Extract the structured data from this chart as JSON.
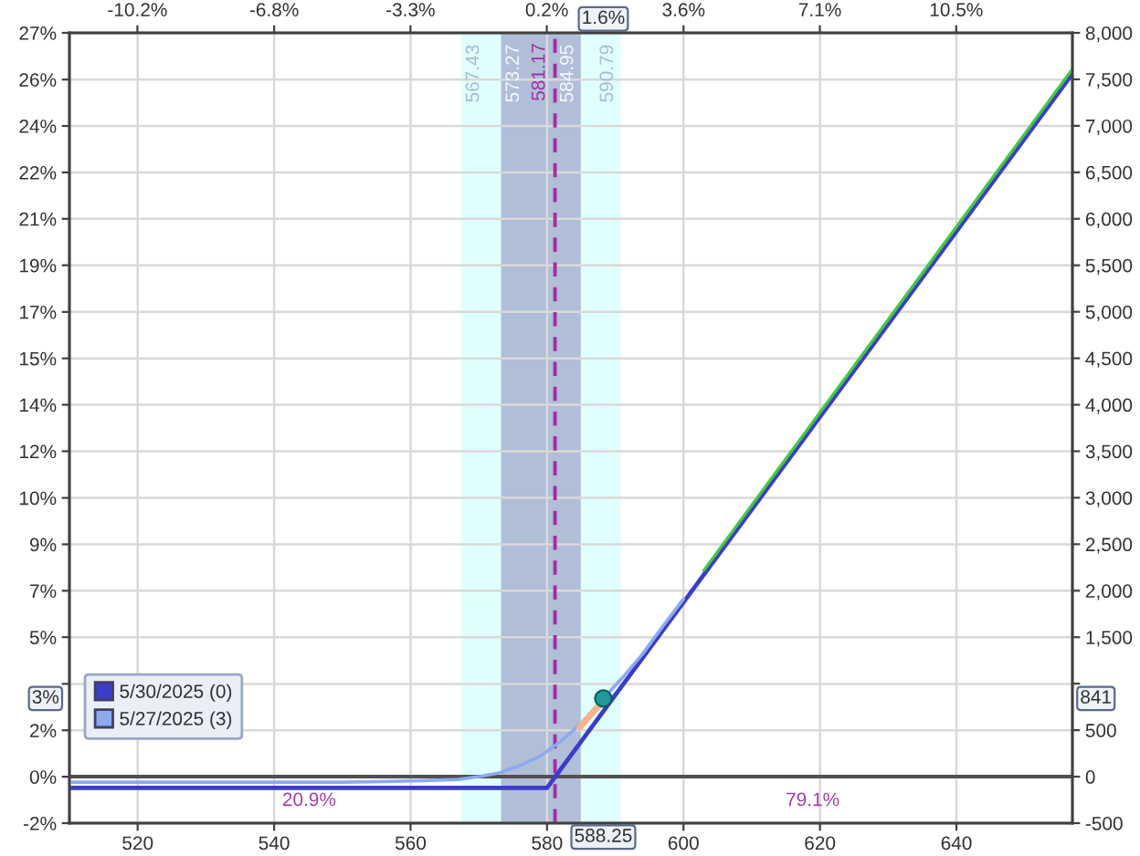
{
  "chart_data": {
    "type": "line",
    "xlim": [
      510,
      657
    ],
    "xticks": [
      520,
      540,
      560,
      580,
      600,
      620,
      640
    ],
    "x2lim": [
      -11.93,
      13.45
    ],
    "x2ticks": [
      {
        "value": -10.21,
        "label": "-10.2%"
      },
      {
        "value": -6.75,
        "label": "-6.8%"
      },
      {
        "value": -3.3,
        "label": "-3.3%"
      },
      {
        "value": 0.15,
        "label": "0.2%"
      },
      {
        "value": 3.61,
        "label": "3.6%"
      },
      {
        "value": 7.06,
        "label": "7.1%"
      },
      {
        "value": 10.51,
        "label": "10.5%"
      }
    ],
    "ylim": [
      -1.71,
      27.4
    ],
    "yticks": [
      {
        "value": -1.71,
        "label": "-2%"
      },
      {
        "value": 0,
        "label": "0%"
      },
      {
        "value": 1.71,
        "label": "2%"
      },
      {
        "value": 3.42,
        "label": null
      },
      {
        "value": 5.14,
        "label": "5%"
      },
      {
        "value": 6.85,
        "label": "7%"
      },
      {
        "value": 8.56,
        "label": "9%"
      },
      {
        "value": 10.27,
        "label": "10%"
      },
      {
        "value": 11.99,
        "label": "12%"
      },
      {
        "value": 13.7,
        "label": "14%"
      },
      {
        "value": 15.41,
        "label": "15%"
      },
      {
        "value": 17.12,
        "label": "17%"
      },
      {
        "value": 18.84,
        "label": "19%"
      },
      {
        "value": 20.55,
        "label": "21%"
      },
      {
        "value": 22.26,
        "label": "22%"
      },
      {
        "value": 23.97,
        "label": "24%"
      },
      {
        "value": 25.68,
        "label": "26%"
      },
      {
        "value": 27.4,
        "label": "27%"
      }
    ],
    "y2lim": [
      -500,
      8000
    ],
    "y2ticks": [
      -500,
      0,
      500,
      {
        "value": 1000,
        "label": null
      },
      {
        "value": 1500,
        "label": "1,500"
      },
      {
        "value": 2000,
        "label": "2,000"
      },
      {
        "value": 2500,
        "label": "2,500"
      },
      {
        "value": 3000,
        "label": "3,000"
      },
      {
        "value": 3500,
        "label": "3,500"
      },
      {
        "value": 4000,
        "label": "4,000"
      },
      {
        "value": 4500,
        "label": "4,500"
      },
      {
        "value": 5000,
        "label": "5,000"
      },
      {
        "value": 5500,
        "label": "5,500"
      },
      {
        "value": 6000,
        "label": "6,000"
      },
      {
        "value": 6500,
        "label": "6,500"
      },
      {
        "value": 7000,
        "label": "7,000"
      },
      {
        "value": 7500,
        "label": "7,500"
      },
      {
        "value": 8000,
        "label": "8,000"
      }
    ],
    "grid": true,
    "legend": "bottom left",
    "bands": [
      {
        "axis": "x",
        "from": 567.43,
        "to": 590.79,
        "color": "#e0ffff"
      },
      {
        "axis": "x",
        "from": 573.27,
        "to": 584.95,
        "color": "#b0bed8"
      }
    ],
    "ref_lines": [
      {
        "axis": "x",
        "value": 581.17,
        "label": "581.17",
        "color": "#a030a0",
        "line_style": "dashed"
      },
      {
        "axis": "y2",
        "value": 0,
        "color": "#505050"
      }
    ],
    "series": [
      {
        "name": "5/30/2025 (0)",
        "color": "#3c3cc8",
        "axis": "y2",
        "x": [
          510,
          580,
          657
        ],
        "values": [
          -120,
          -120,
          7560
        ]
      },
      {
        "name": "5/27/2025 (3)",
        "color": "#8caaf0",
        "axis": "y2",
        "x": [
          510,
          530,
          550,
          558,
          563,
          567,
          570,
          573,
          576,
          579,
          582,
          585,
          588.25,
          591,
          594,
          597,
          600
        ],
        "values": [
          -60,
          -60,
          -60,
          -50,
          -40,
          -30,
          0,
          40,
          120,
          220,
          380,
          570,
          841,
          1060,
          1320,
          1620,
          1910
        ]
      },
      {
        "color": "#44c844",
        "axis": "y2",
        "x": [
          603,
          657
        ],
        "values": [
          2220,
          7610
        ]
      },
      {
        "color": "#f5b48c",
        "axis": "y2",
        "x": [
          584.8,
          587.9
        ],
        "values": [
          530,
          790
        ]
      },
      {
        "type": "scatter",
        "color": "#1e9a9a",
        "axis": "y2",
        "x": [
          588.25
        ],
        "values": [
          841
        ],
        "marker": "circle"
      }
    ],
    "annotations": [
      {
        "text": "567.43",
        "x": 567.43,
        "y": 25.9
      },
      {
        "text": "573.27",
        "x": 573.27,
        "y": 25.9
      },
      {
        "text": "584.95",
        "x": 584.95,
        "y": 25.9
      },
      {
        "text": "590.79",
        "x": 590.79,
        "y": 25.9
      },
      "20.9%",
      "79.1%",
      "588.25",
      "1.6%",
      "841",
      "3%"
    ]
  }
}
